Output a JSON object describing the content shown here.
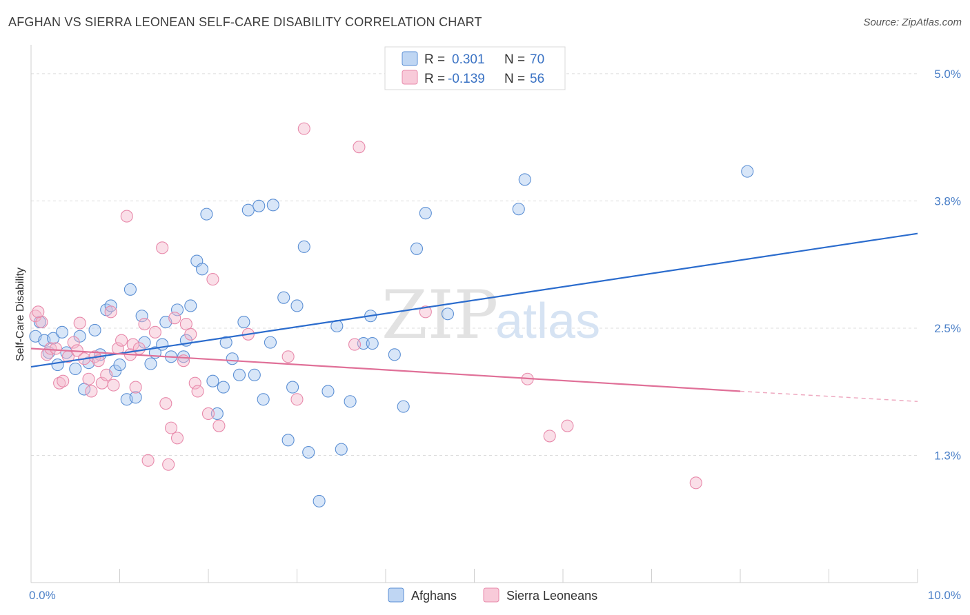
{
  "title": "AFGHAN VS SIERRA LEONEAN SELF-CARE DISABILITY CORRELATION CHART",
  "source": "Source: ZipAtlas.com",
  "watermark": {
    "zip": "ZIP",
    "atlas": "atlas"
  },
  "legend": {
    "rows": [
      {
        "r_label": "R =",
        "r_value": "0.301",
        "n_label": "N =",
        "n_value": "70",
        "color": "#a9c8ef"
      },
      {
        "r_label": "R =",
        "r_value": "-0.139",
        "n_label": "N =",
        "n_value": "56",
        "color": "#f5b8cc"
      }
    ]
  },
  "bottom_legend": [
    {
      "label": "Afghans",
      "color": "#a9c8ef"
    },
    {
      "label": "Sierra Leoneans",
      "color": "#f5b8cc"
    }
  ],
  "chart_data": {
    "type": "scatter",
    "xlabel": "",
    "ylabel": "Self-Care Disability",
    "xlim": [
      0,
      10
    ],
    "ylim": [
      0,
      5.25
    ],
    "y_ticks": [
      {
        "value": 1.25,
        "label": "1.3%"
      },
      {
        "value": 2.5,
        "label": "2.5%"
      },
      {
        "value": 3.75,
        "label": "3.8%"
      },
      {
        "value": 5.0,
        "label": "5.0%"
      }
    ],
    "x_tick_labels": [
      {
        "value": 0,
        "label": "0.0%"
      },
      {
        "value": 10,
        "label": "10.0%"
      }
    ],
    "grid": true,
    "series": [
      {
        "name": "Afghans",
        "color": "#a9c8ef",
        "stroke": "#5b8fd4",
        "trend": {
          "x": [
            0,
            10
          ],
          "y": [
            2.12,
            3.43
          ],
          "color": "#2b6ccd"
        },
        "points": [
          [
            0.05,
            2.42
          ],
          [
            0.15,
            2.38
          ],
          [
            0.2,
            2.26
          ],
          [
            0.25,
            2.4
          ],
          [
            0.3,
            2.14
          ],
          [
            0.35,
            2.46
          ],
          [
            0.4,
            2.26
          ],
          [
            0.5,
            2.1
          ],
          [
            0.55,
            2.42
          ],
          [
            0.6,
            1.9
          ],
          [
            0.65,
            2.16
          ],
          [
            0.72,
            2.48
          ],
          [
            0.78,
            2.24
          ],
          [
            0.85,
            2.68
          ],
          [
            0.9,
            2.72
          ],
          [
            0.95,
            2.08
          ],
          [
            1.0,
            2.14
          ],
          [
            1.08,
            1.8
          ],
          [
            1.12,
            2.88
          ],
          [
            1.18,
            1.82
          ],
          [
            1.25,
            2.62
          ],
          [
            1.28,
            2.36
          ],
          [
            1.35,
            2.15
          ],
          [
            1.4,
            2.26
          ],
          [
            1.48,
            2.34
          ],
          [
            1.52,
            2.56
          ],
          [
            1.58,
            2.22
          ],
          [
            1.65,
            2.68
          ],
          [
            1.72,
            2.22
          ],
          [
            1.75,
            2.38
          ],
          [
            1.8,
            2.72
          ],
          [
            1.87,
            3.16
          ],
          [
            1.93,
            3.08
          ],
          [
            1.98,
            3.62
          ],
          [
            2.05,
            1.98
          ],
          [
            2.1,
            1.66
          ],
          [
            2.17,
            1.92
          ],
          [
            2.2,
            2.36
          ],
          [
            2.27,
            2.2
          ],
          [
            2.35,
            2.04
          ],
          [
            2.4,
            2.56
          ],
          [
            2.45,
            3.66
          ],
          [
            2.52,
            2.04
          ],
          [
            2.57,
            3.7
          ],
          [
            2.62,
            1.8
          ],
          [
            2.7,
            2.36
          ],
          [
            2.73,
            3.71
          ],
          [
            2.85,
            2.8
          ],
          [
            2.9,
            1.4
          ],
          [
            2.95,
            1.92
          ],
          [
            3.0,
            2.72
          ],
          [
            3.08,
            3.3
          ],
          [
            3.13,
            1.28
          ],
          [
            3.25,
            0.8
          ],
          [
            3.35,
            1.88
          ],
          [
            3.45,
            2.52
          ],
          [
            3.5,
            1.31
          ],
          [
            3.6,
            1.78
          ],
          [
            3.75,
            2.35
          ],
          [
            3.85,
            2.35
          ],
          [
            3.83,
            2.62
          ],
          [
            4.1,
            2.24
          ],
          [
            4.2,
            1.73
          ],
          [
            4.35,
            3.28
          ],
          [
            4.45,
            3.63
          ],
          [
            4.7,
            2.64
          ],
          [
            5.5,
            3.67
          ],
          [
            5.57,
            3.96
          ],
          [
            8.08,
            4.04
          ],
          [
            0.1,
            2.56
          ]
        ]
      },
      {
        "name": "Sierra Leoneans",
        "color": "#f5b8cc",
        "stroke": "#e88aab",
        "trend": {
          "x": [
            0,
            8.0
          ],
          "y": [
            2.3,
            1.88
          ],
          "color": "#e07098"
        },
        "trend_dashed": {
          "x": [
            8.0,
            10
          ],
          "y": [
            1.88,
            1.78
          ],
          "color": "#eea9c0"
        },
        "points": [
          [
            0.05,
            2.62
          ],
          [
            0.12,
            2.56
          ],
          [
            0.18,
            2.24
          ],
          [
            0.22,
            2.3
          ],
          [
            0.28,
            2.3
          ],
          [
            0.32,
            1.96
          ],
          [
            0.36,
            1.98
          ],
          [
            0.42,
            2.22
          ],
          [
            0.48,
            2.36
          ],
          [
            0.52,
            2.28
          ],
          [
            0.55,
            2.55
          ],
          [
            0.6,
            2.2
          ],
          [
            0.65,
            2.0
          ],
          [
            0.68,
            1.88
          ],
          [
            0.72,
            2.22
          ],
          [
            0.76,
            2.18
          ],
          [
            0.8,
            1.96
          ],
          [
            0.85,
            2.04
          ],
          [
            0.9,
            2.66
          ],
          [
            0.93,
            1.94
          ],
          [
            0.98,
            2.3
          ],
          [
            1.02,
            2.38
          ],
          [
            1.08,
            3.6
          ],
          [
            1.12,
            2.24
          ],
          [
            1.15,
            2.34
          ],
          [
            1.18,
            1.92
          ],
          [
            1.22,
            2.3
          ],
          [
            1.28,
            2.54
          ],
          [
            1.32,
            1.2
          ],
          [
            1.4,
            2.46
          ],
          [
            1.48,
            3.29
          ],
          [
            1.52,
            1.76
          ],
          [
            1.55,
            1.16
          ],
          [
            1.58,
            1.52
          ],
          [
            1.62,
            2.6
          ],
          [
            1.65,
            1.42
          ],
          [
            1.72,
            2.18
          ],
          [
            1.75,
            2.54
          ],
          [
            1.8,
            2.44
          ],
          [
            1.85,
            1.96
          ],
          [
            1.88,
            1.88
          ],
          [
            2.0,
            1.66
          ],
          [
            2.05,
            2.98
          ],
          [
            2.12,
            1.54
          ],
          [
            2.45,
            2.44
          ],
          [
            2.9,
            2.22
          ],
          [
            3.0,
            1.8
          ],
          [
            3.08,
            4.46
          ],
          [
            3.65,
            2.34
          ],
          [
            3.7,
            4.28
          ],
          [
            4.45,
            2.66
          ],
          [
            5.6,
            2.0
          ],
          [
            5.85,
            1.44
          ],
          [
            6.05,
            1.54
          ],
          [
            7.5,
            0.98
          ],
          [
            0.08,
            2.66
          ]
        ]
      }
    ]
  }
}
